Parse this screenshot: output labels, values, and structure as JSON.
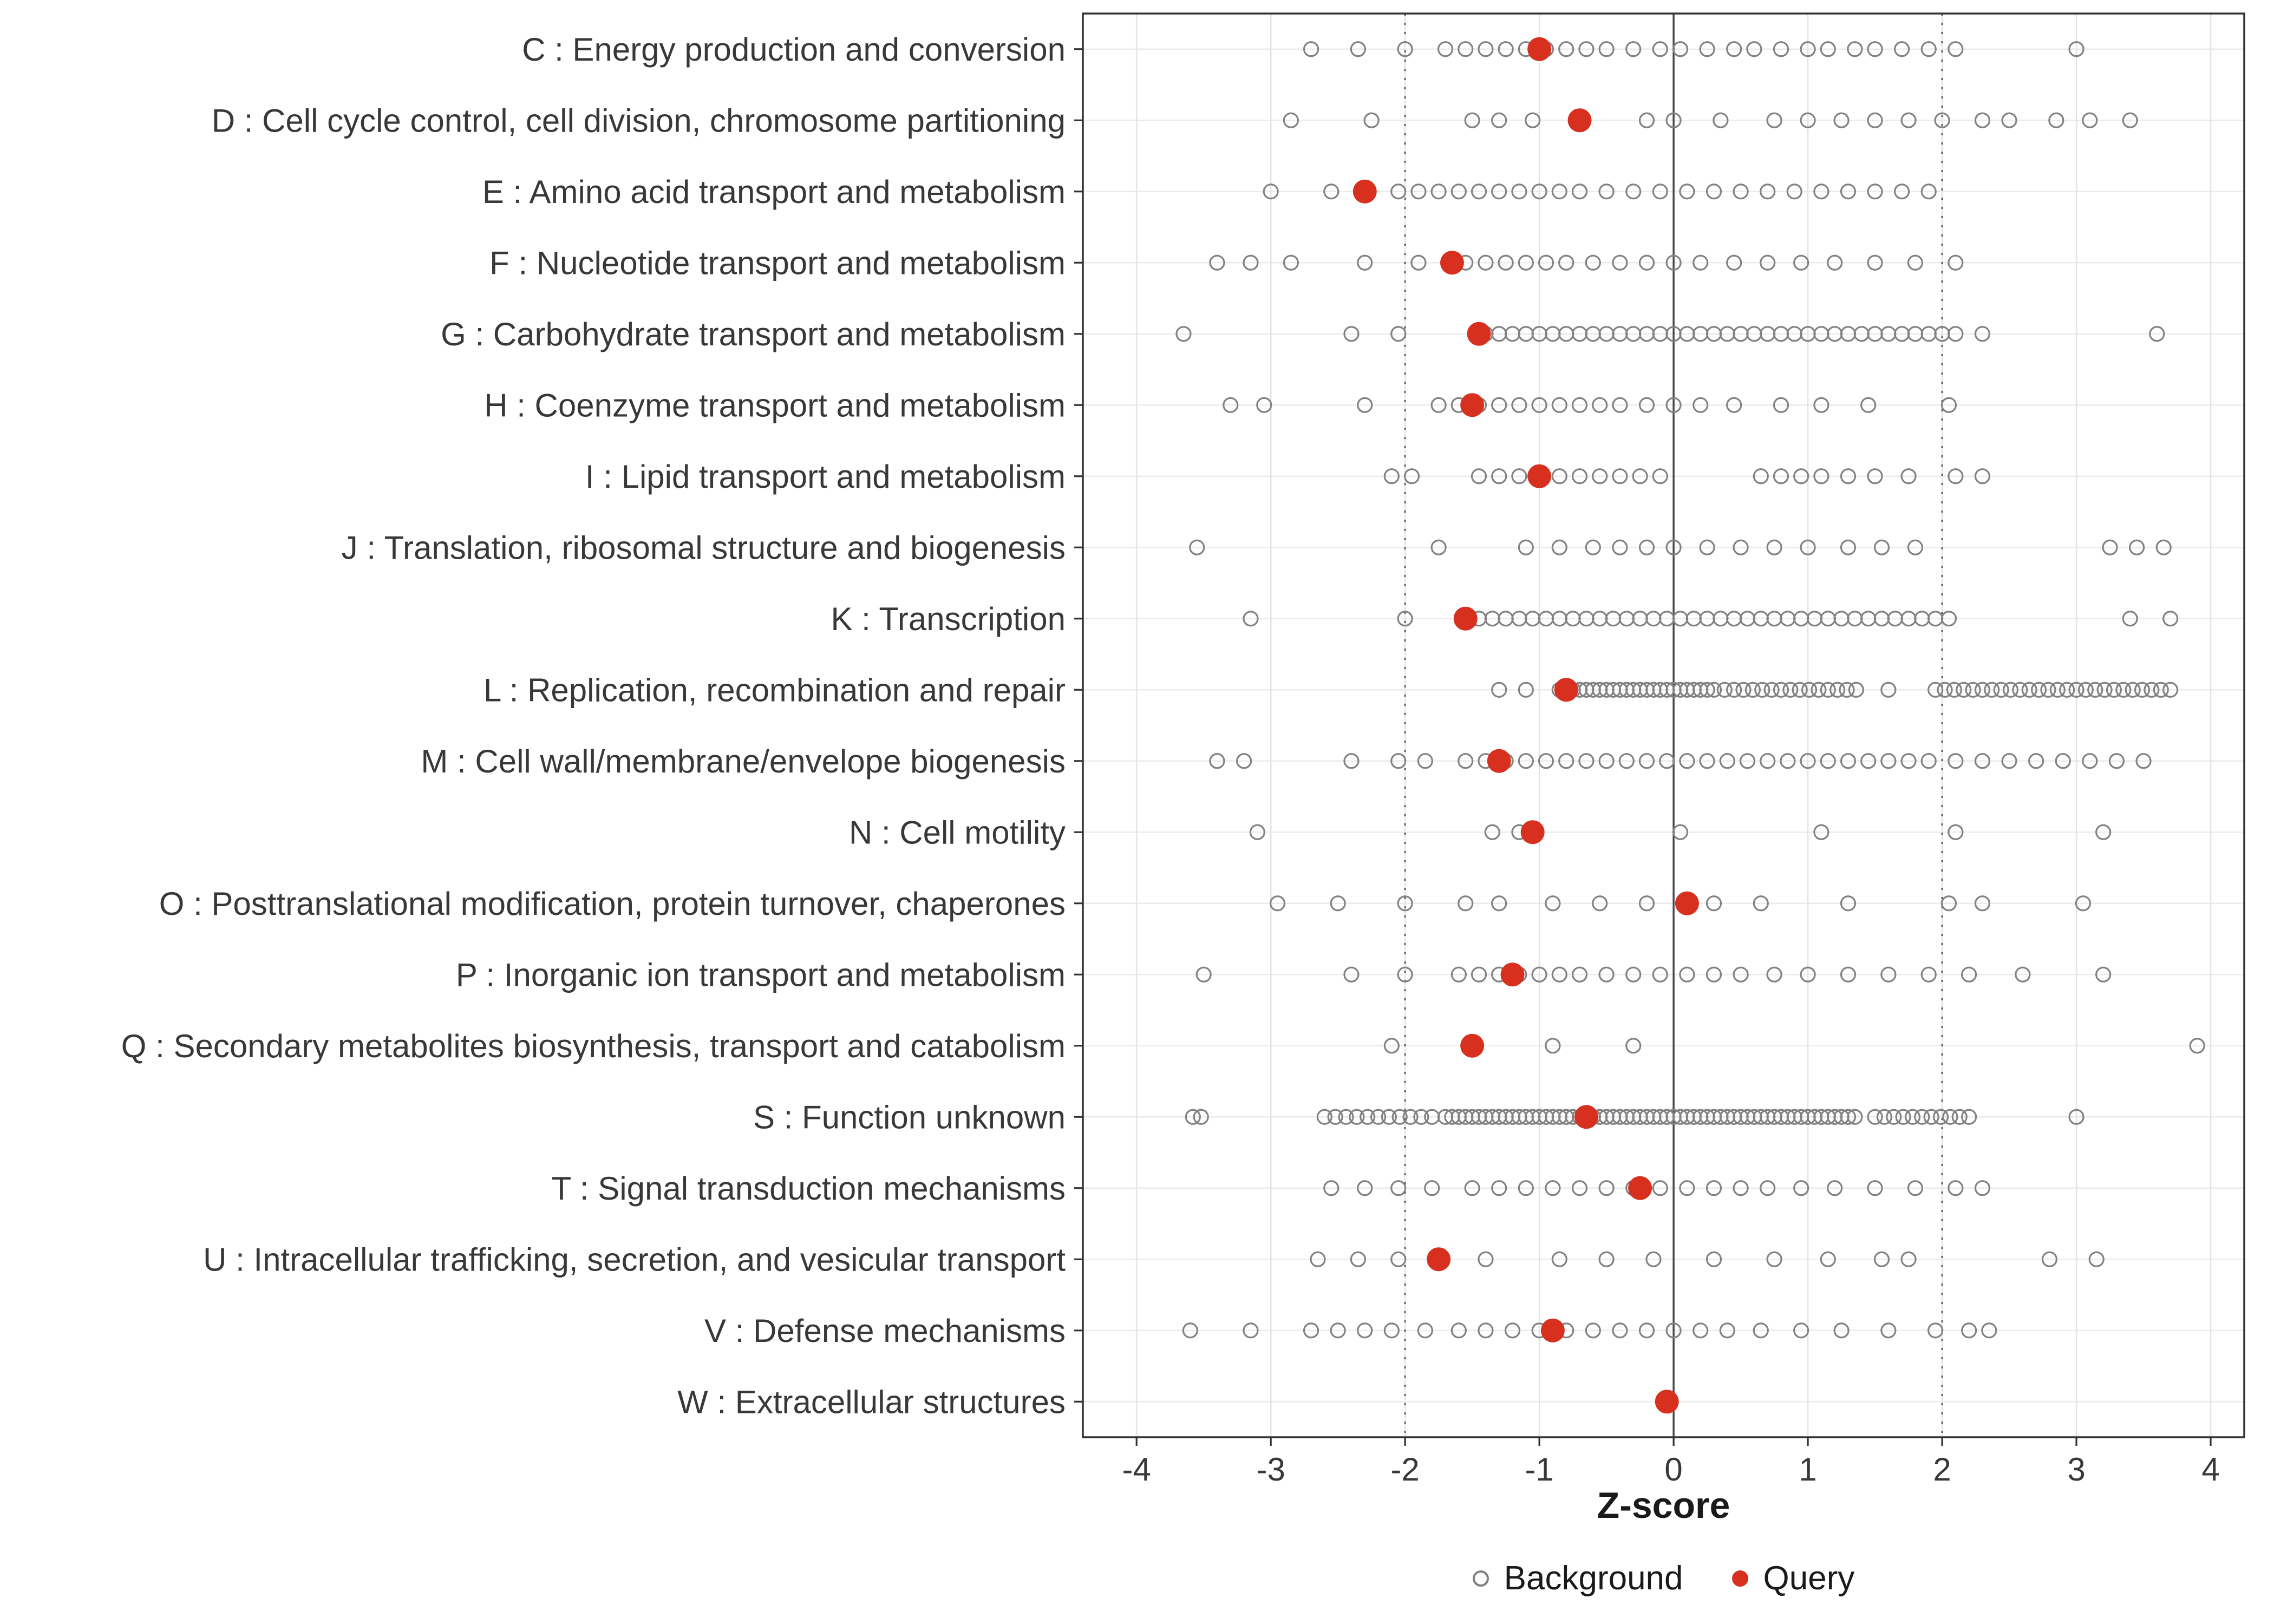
{
  "chart_data": {
    "type": "scatter",
    "title": "",
    "xlabel": "Z-score",
    "x_ticks": [
      -4,
      -3,
      -2,
      -1,
      0,
      1,
      2,
      3,
      4
    ],
    "xlim": [
      -4.4,
      4.25
    ],
    "grid": true,
    "reference_lines": {
      "solid": [
        0
      ],
      "dotted": [
        -2,
        2
      ]
    },
    "legend": [
      {
        "label": "Background",
        "type": "open"
      },
      {
        "label": "Query",
        "type": "filled"
      }
    ],
    "colors": {
      "background_stroke": "#828282",
      "query_fill": "#d7301f",
      "grid": "#ebebeb",
      "grid_vertical": "#e4e4e4",
      "axis_text": "#383838",
      "panel_border": "#333333",
      "ref_solid": "#4a4a4a",
      "ref_dotted": "#5a5a5a"
    },
    "categories": [
      {
        "label": "C : Energy production and conversion",
        "query": -1.0,
        "background": [
          -2.7,
          -2.35,
          -2.0,
          -1.7,
          -1.55,
          -1.4,
          -1.25,
          -1.1,
          -0.95,
          -0.8,
          -0.65,
          -0.5,
          -0.3,
          -0.1,
          0.05,
          0.25,
          0.45,
          0.6,
          0.8,
          1.0,
          1.15,
          1.35,
          1.5,
          1.7,
          1.9,
          2.1,
          3.0
        ]
      },
      {
        "label": "D : Cell cycle control, cell division, chromosome partitioning",
        "query": -0.7,
        "background": [
          -2.85,
          -2.25,
          -1.5,
          -1.3,
          -1.05,
          -0.2,
          0.0,
          0.35,
          0.75,
          1.0,
          1.25,
          1.5,
          1.75,
          2.0,
          2.3,
          2.5,
          2.85,
          3.1,
          3.4
        ]
      },
      {
        "label": "E : Amino acid transport and metabolism",
        "query": -2.3,
        "background": [
          -3.0,
          -2.55,
          -2.05,
          -1.9,
          -1.75,
          -1.6,
          -1.45,
          -1.3,
          -1.15,
          -1.0,
          -0.85,
          -0.7,
          -0.5,
          -0.3,
          -0.1,
          0.1,
          0.3,
          0.5,
          0.7,
          0.9,
          1.1,
          1.3,
          1.5,
          1.7,
          1.9
        ]
      },
      {
        "label": "F : Nucleotide transport and metabolism",
        "query": -1.65,
        "background": [
          -3.4,
          -3.15,
          -2.85,
          -2.3,
          -1.9,
          -1.55,
          -1.4,
          -1.25,
          -1.1,
          -0.95,
          -0.8,
          -0.6,
          -0.4,
          -0.2,
          0.0,
          0.2,
          0.45,
          0.7,
          0.95,
          1.2,
          1.5,
          1.8,
          2.1
        ]
      },
      {
        "label": "G : Carbohydrate transport and metabolism",
        "query": -1.45,
        "background": [
          -3.65,
          -2.4,
          -2.05,
          -1.4,
          -1.3,
          -1.2,
          -1.1,
          -1.0,
          -0.9,
          -0.8,
          -0.7,
          -0.6,
          -0.5,
          -0.4,
          -0.3,
          -0.2,
          -0.1,
          0.0,
          0.1,
          0.2,
          0.3,
          0.4,
          0.5,
          0.6,
          0.7,
          0.8,
          0.9,
          1.0,
          1.1,
          1.2,
          1.3,
          1.4,
          1.5,
          1.6,
          1.7,
          1.8,
          1.9,
          2.0,
          2.1,
          2.3,
          3.6
        ]
      },
      {
        "label": "H : Coenzyme transport and metabolism",
        "query": -1.5,
        "background": [
          -3.3,
          -3.05,
          -2.3,
          -1.75,
          -1.6,
          -1.45,
          -1.3,
          -1.15,
          -1.0,
          -0.85,
          -0.7,
          -0.55,
          -0.4,
          -0.2,
          0.0,
          0.2,
          0.45,
          0.8,
          1.1,
          1.45,
          2.05
        ]
      },
      {
        "label": "I : Lipid transport and metabolism",
        "query": -1.0,
        "background": [
          -2.1,
          -1.95,
          -1.45,
          -1.3,
          -1.15,
          -1.0,
          -0.85,
          -0.7,
          -0.55,
          -0.4,
          -0.25,
          -0.1,
          0.65,
          0.8,
          0.95,
          1.1,
          1.3,
          1.5,
          1.75,
          2.1,
          2.3
        ]
      },
      {
        "label": "J : Translation, ribosomal structure and biogenesis",
        "query": null,
        "background": [
          -3.55,
          -1.75,
          -1.1,
          -0.85,
          -0.6,
          -0.4,
          -0.2,
          0.0,
          0.25,
          0.5,
          0.75,
          1.0,
          1.3,
          1.55,
          1.8,
          3.25,
          3.45,
          3.65
        ]
      },
      {
        "label": "K : Transcription",
        "query": -1.55,
        "background": [
          -3.15,
          -2.0,
          -1.45,
          -1.35,
          -1.25,
          -1.15,
          -1.05,
          -0.95,
          -0.85,
          -0.75,
          -0.65,
          -0.55,
          -0.45,
          -0.35,
          -0.25,
          -0.15,
          -0.05,
          0.05,
          0.15,
          0.25,
          0.35,
          0.45,
          0.55,
          0.65,
          0.75,
          0.85,
          0.95,
          1.05,
          1.15,
          1.25,
          1.35,
          1.45,
          1.55,
          1.65,
          1.75,
          1.85,
          1.95,
          2.05,
          3.4,
          3.7
        ]
      },
      {
        "label": "L : Replication, recombination and repair",
        "query": -0.8,
        "background": [
          -1.3,
          -1.1,
          -0.85,
          -0.8,
          -0.75,
          -0.7,
          -0.65,
          -0.6,
          -0.55,
          -0.5,
          -0.45,
          -0.4,
          -0.35,
          -0.3,
          -0.25,
          -0.2,
          -0.15,
          -0.1,
          -0.05,
          0.0,
          0.05,
          0.1,
          0.15,
          0.2,
          0.25,
          0.3,
          0.38,
          0.45,
          0.52,
          0.59,
          0.66,
          0.73,
          0.8,
          0.87,
          0.94,
          1.01,
          1.08,
          1.15,
          1.22,
          1.29,
          1.36,
          1.6,
          1.95,
          2.02,
          2.09,
          2.16,
          2.23,
          2.3,
          2.37,
          2.44,
          2.51,
          2.58,
          2.65,
          2.72,
          2.79,
          2.86,
          2.93,
          3.0,
          3.07,
          3.14,
          3.21,
          3.28,
          3.35,
          3.42,
          3.49,
          3.56,
          3.63,
          3.7
        ]
      },
      {
        "label": "M : Cell wall/membrane/envelope biogenesis",
        "query": -1.3,
        "background": [
          -3.4,
          -3.2,
          -2.4,
          -2.05,
          -1.85,
          -1.55,
          -1.4,
          -1.25,
          -1.1,
          -0.95,
          -0.8,
          -0.65,
          -0.5,
          -0.35,
          -0.2,
          -0.05,
          0.1,
          0.25,
          0.4,
          0.55,
          0.7,
          0.85,
          1.0,
          1.15,
          1.3,
          1.45,
          1.6,
          1.75,
          1.9,
          2.1,
          2.3,
          2.5,
          2.7,
          2.9,
          3.1,
          3.3,
          3.5
        ]
      },
      {
        "label": "N : Cell motility",
        "query": -1.05,
        "background": [
          -3.1,
          -1.35,
          -1.15,
          0.05,
          1.1,
          2.1,
          3.2
        ]
      },
      {
        "label": "O : Posttranslational modification, protein turnover, chaperones",
        "query": 0.1,
        "background": [
          -2.95,
          -2.5,
          -2.0,
          -1.55,
          -1.3,
          -0.9,
          -0.55,
          -0.2,
          0.3,
          0.65,
          1.3,
          2.05,
          2.3,
          3.05
        ]
      },
      {
        "label": "P : Inorganic ion transport and metabolism",
        "query": -1.2,
        "background": [
          -3.5,
          -2.4,
          -2.0,
          -1.6,
          -1.45,
          -1.3,
          -1.15,
          -1.0,
          -0.85,
          -0.7,
          -0.5,
          -0.3,
          -0.1,
          0.1,
          0.3,
          0.5,
          0.75,
          1.0,
          1.3,
          1.6,
          1.9,
          2.2,
          2.6,
          3.2
        ]
      },
      {
        "label": "Q : Secondary metabolites biosynthesis, transport and catabolism",
        "query": -1.5,
        "background": [
          -2.1,
          -0.9,
          -0.3,
          3.9
        ]
      },
      {
        "label": "S : Function unknown",
        "query": -0.65,
        "background": [
          -3.58,
          -3.52,
          -2.6,
          -2.52,
          -2.44,
          -2.36,
          -2.28,
          -2.2,
          -2.12,
          -2.04,
          -1.96,
          -1.88,
          -1.8,
          -1.7,
          -1.65,
          -1.6,
          -1.55,
          -1.5,
          -1.45,
          -1.4,
          -1.35,
          -1.3,
          -1.25,
          -1.2,
          -1.15,
          -1.1,
          -1.05,
          -1.0,
          -0.95,
          -0.9,
          -0.85,
          -0.8,
          -0.75,
          -0.7,
          -0.65,
          -0.6,
          -0.55,
          -0.5,
          -0.45,
          -0.4,
          -0.35,
          -0.3,
          -0.25,
          -0.2,
          -0.15,
          -0.1,
          -0.05,
          0.0,
          0.05,
          0.1,
          0.15,
          0.2,
          0.25,
          0.3,
          0.35,
          0.4,
          0.45,
          0.5,
          0.55,
          0.6,
          0.65,
          0.7,
          0.75,
          0.8,
          0.85,
          0.9,
          0.95,
          1.0,
          1.05,
          1.1,
          1.15,
          1.2,
          1.25,
          1.3,
          1.35,
          1.5,
          1.57,
          1.64,
          1.71,
          1.78,
          1.85,
          1.92,
          1.99,
          2.06,
          2.13,
          2.2,
          3.0
        ]
      },
      {
        "label": "T : Signal transduction mechanisms",
        "query": -0.25,
        "background": [
          -2.55,
          -2.3,
          -2.05,
          -1.8,
          -1.5,
          -1.3,
          -1.1,
          -0.9,
          -0.7,
          -0.5,
          -0.3,
          -0.1,
          0.1,
          0.3,
          0.5,
          0.7,
          0.95,
          1.2,
          1.5,
          1.8,
          2.1,
          2.3
        ]
      },
      {
        "label": "U : Intracellular trafficking, secretion, and vesicular transport",
        "query": -1.75,
        "background": [
          -2.65,
          -2.35,
          -2.05,
          -1.4,
          -0.85,
          -0.5,
          -0.15,
          0.3,
          0.75,
          1.15,
          1.55,
          1.75,
          2.8,
          3.15
        ]
      },
      {
        "label": "V : Defense mechanisms",
        "query": -0.9,
        "background": [
          -3.6,
          -3.15,
          -2.7,
          -2.5,
          -2.3,
          -2.1,
          -1.85,
          -1.6,
          -1.4,
          -1.2,
          -1.0,
          -0.8,
          -0.6,
          -0.4,
          -0.2,
          0.0,
          0.2,
          0.4,
          0.65,
          0.95,
          1.25,
          1.6,
          1.95,
          2.2,
          2.35
        ]
      },
      {
        "label": "W : Extracellular structures",
        "query": -0.05,
        "background": []
      }
    ]
  }
}
